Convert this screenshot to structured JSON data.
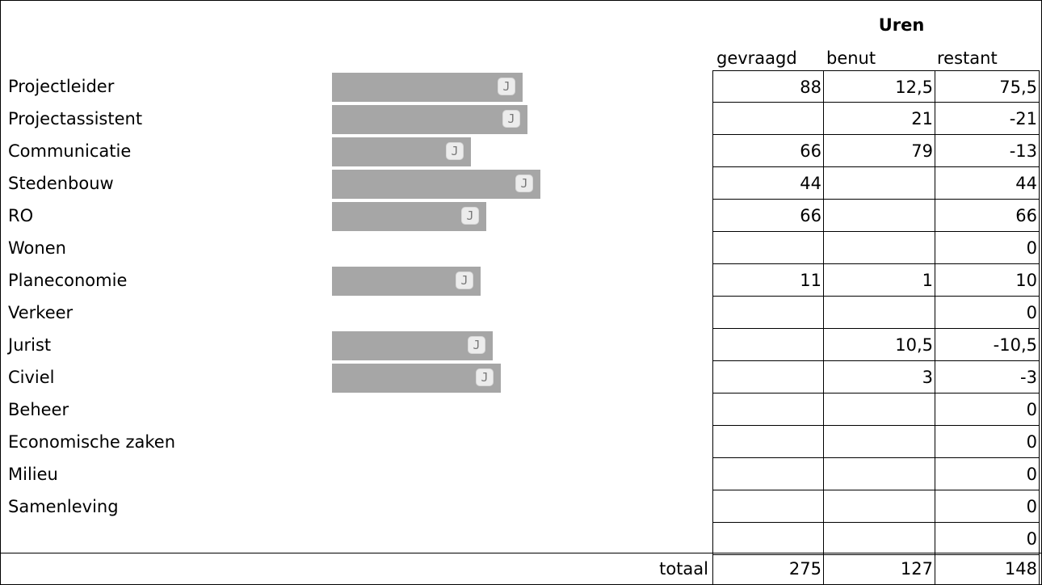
{
  "header": {
    "group_label": "Uren",
    "col_requested": "gevraagd",
    "col_used": "benut",
    "col_remaining": "restant"
  },
  "button_glyph": "J",
  "rows": [
    {
      "label": "Projectleider",
      "bar": true,
      "gevraagd": "88",
      "benut": "12,5",
      "restant": "75,5"
    },
    {
      "label": "Projectassistent",
      "bar": true,
      "gevraagd": "",
      "benut": "21",
      "restant": "-21"
    },
    {
      "label": "Communicatie",
      "bar": true,
      "gevraagd": "66",
      "benut": "79",
      "restant": "-13"
    },
    {
      "label": "Stedenbouw",
      "bar": true,
      "gevraagd": "44",
      "benut": "",
      "restant": "44"
    },
    {
      "label": "RO",
      "bar": true,
      "gevraagd": "66",
      "benut": "",
      "restant": "66"
    },
    {
      "label": "Wonen",
      "bar": false,
      "gevraagd": "",
      "benut": "",
      "restant": "0"
    },
    {
      "label": "Planeconomie",
      "bar": true,
      "gevraagd": "11",
      "benut": "1",
      "restant": "10"
    },
    {
      "label": "Verkeer",
      "bar": false,
      "gevraagd": "",
      "benut": "",
      "restant": "0"
    },
    {
      "label": "Jurist",
      "bar": true,
      "gevraagd": "",
      "benut": "10,5",
      "restant": "-10,5"
    },
    {
      "label": "Civiel",
      "bar": true,
      "gevraagd": "",
      "benut": "3",
      "restant": "-3"
    },
    {
      "label": "Beheer",
      "bar": false,
      "gevraagd": "",
      "benut": "",
      "restant": "0"
    },
    {
      "label": "Economische zaken",
      "bar": false,
      "gevraagd": "",
      "benut": "",
      "restant": "0"
    },
    {
      "label": "Milieu",
      "bar": false,
      "gevraagd": "",
      "benut": "",
      "restant": "0"
    },
    {
      "label": "Samenleving",
      "bar": false,
      "gevraagd": "",
      "benut": "",
      "restant": "0"
    },
    {
      "label": "",
      "bar": false,
      "gevraagd": "",
      "benut": "",
      "restant": "0"
    }
  ],
  "totals": {
    "label": "totaal",
    "gevraagd": "275",
    "benut": "127",
    "restant": "148"
  },
  "colors": {
    "bar": "#a6a6a6",
    "button_bg": "#ececec"
  }
}
